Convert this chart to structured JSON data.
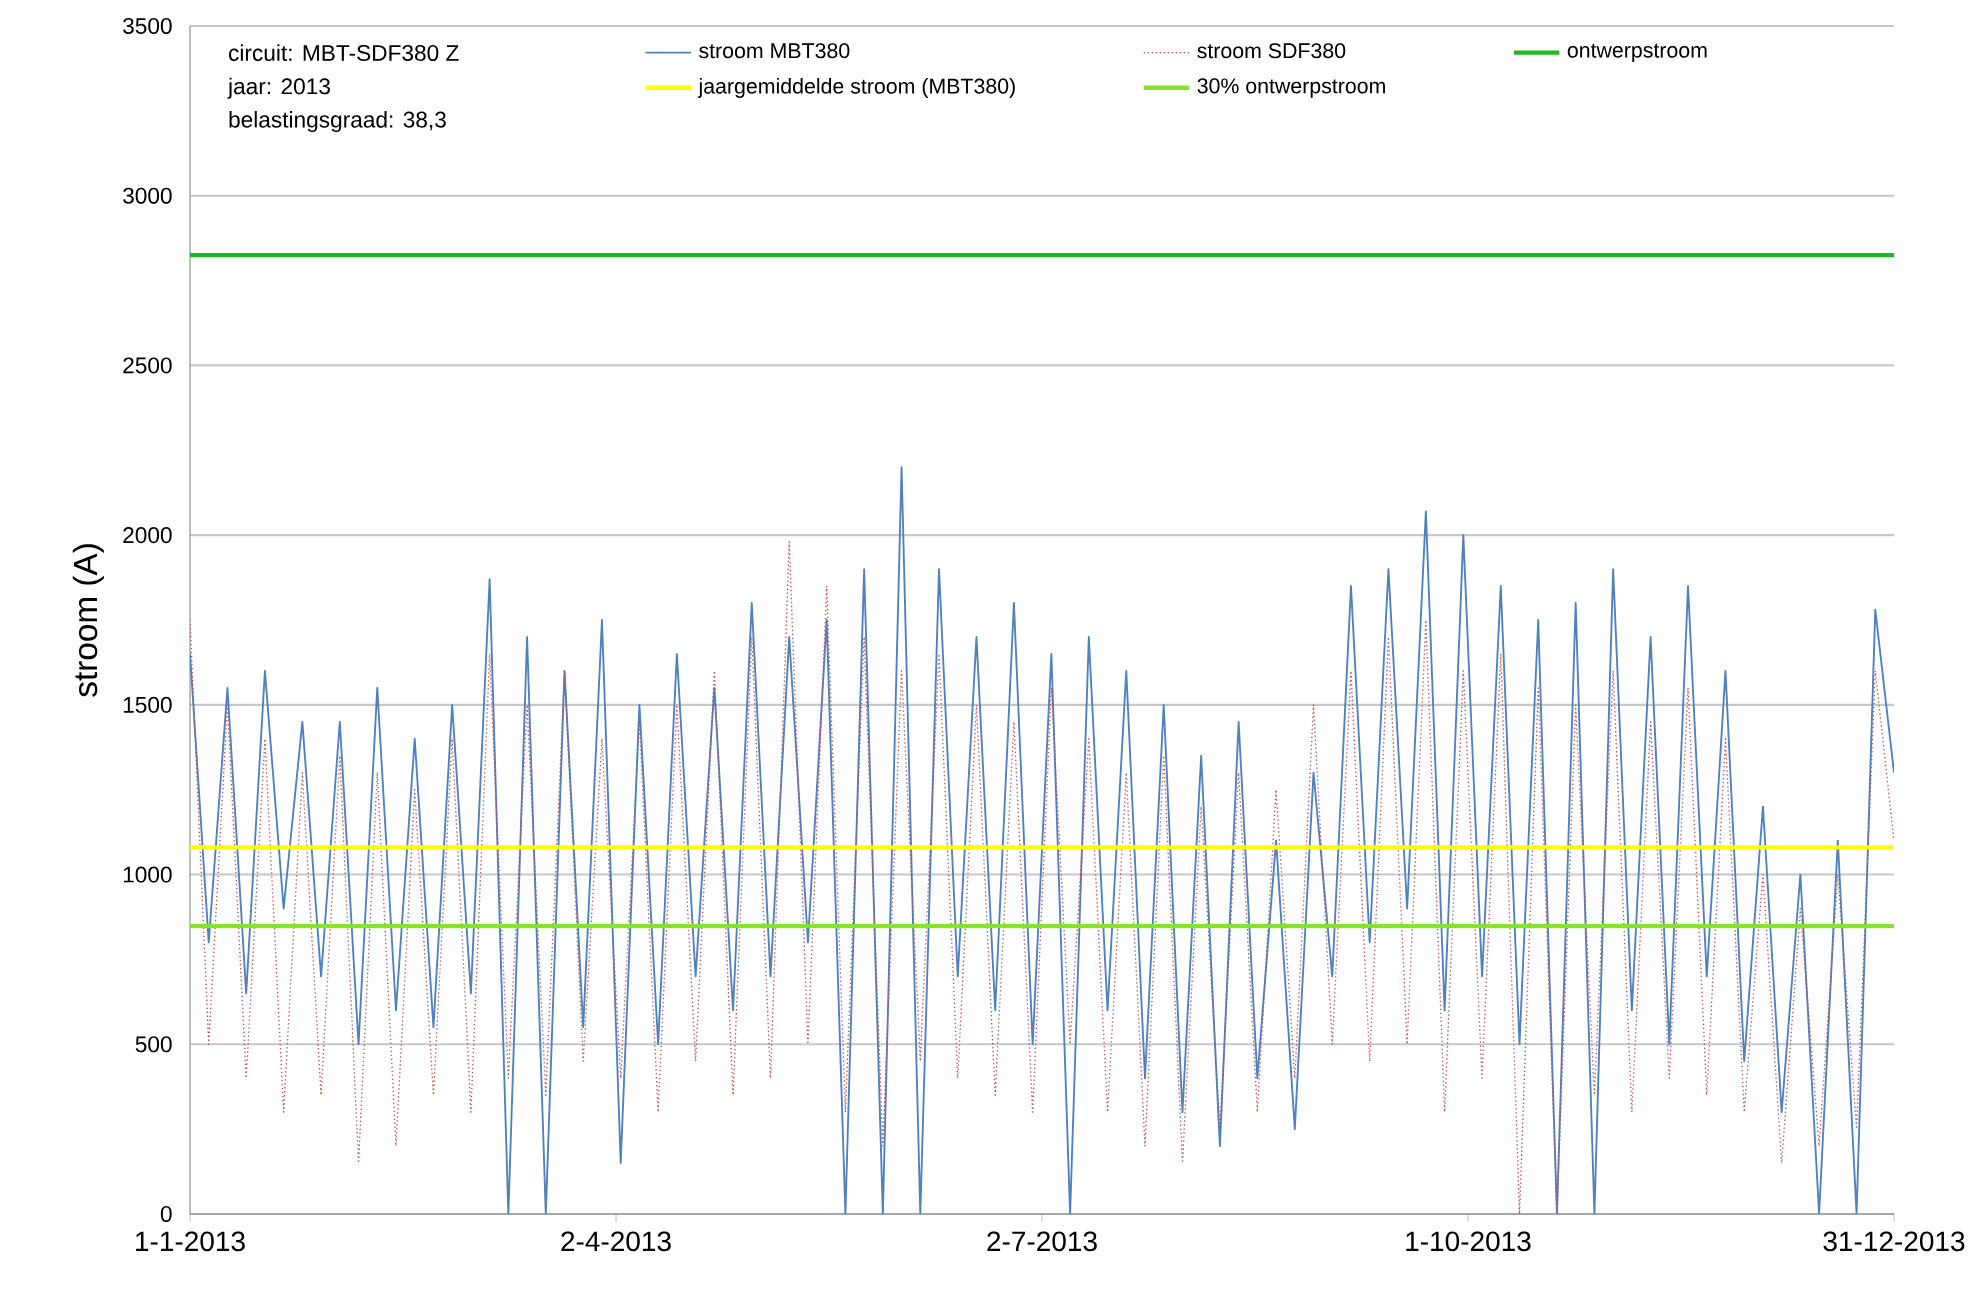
{
  "chart_data": {
    "type": "line",
    "ylabel": "stroom (A)",
    "annotations": [
      "circuit: MBT-SDF380 Z",
      "jaar: 2013",
      "belastingsgraad: 38,3"
    ],
    "x": [
      "2013-01-01",
      "2013-01-05",
      "2013-01-09",
      "2013-01-13",
      "2013-01-17",
      "2013-01-21",
      "2013-01-25",
      "2013-01-29",
      "2013-02-02",
      "2013-02-06",
      "2013-02-10",
      "2013-02-14",
      "2013-02-18",
      "2013-02-22",
      "2013-02-26",
      "2013-03-02",
      "2013-03-06",
      "2013-03-10",
      "2013-03-14",
      "2013-03-18",
      "2013-03-22",
      "2013-03-26",
      "2013-03-30",
      "2013-04-03",
      "2013-04-07",
      "2013-04-11",
      "2013-04-15",
      "2013-04-19",
      "2013-04-23",
      "2013-04-27",
      "2013-05-01",
      "2013-05-05",
      "2013-05-09",
      "2013-05-13",
      "2013-05-17",
      "2013-05-21",
      "2013-05-25",
      "2013-05-29",
      "2013-06-02",
      "2013-06-06",
      "2013-06-10",
      "2013-06-14",
      "2013-06-18",
      "2013-06-22",
      "2013-06-26",
      "2013-06-30",
      "2013-07-04",
      "2013-07-08",
      "2013-07-12",
      "2013-07-16",
      "2013-07-20",
      "2013-07-24",
      "2013-07-28",
      "2013-08-01",
      "2013-08-05",
      "2013-08-09",
      "2013-08-13",
      "2013-08-17",
      "2013-08-21",
      "2013-08-25",
      "2013-08-29",
      "2013-09-02",
      "2013-09-06",
      "2013-09-10",
      "2013-09-14",
      "2013-09-18",
      "2013-09-22",
      "2013-09-26",
      "2013-09-30",
      "2013-10-04",
      "2013-10-08",
      "2013-10-12",
      "2013-10-16",
      "2013-10-20",
      "2013-10-24",
      "2013-10-28",
      "2013-11-01",
      "2013-11-05",
      "2013-11-09",
      "2013-11-13",
      "2013-11-17",
      "2013-11-21",
      "2013-11-25",
      "2013-11-29",
      "2013-12-03",
      "2013-12-07",
      "2013-12-11",
      "2013-12-15",
      "2013-12-19",
      "2013-12-23",
      "2013-12-27",
      "2013-12-31"
    ],
    "series": [
      {
        "name": "stroom MBT380",
        "color": "#4f81bd",
        "line_style": "solid",
        "values": [
          1650,
          800,
          1550,
          650,
          1600,
          900,
          1450,
          700,
          1450,
          500,
          1550,
          600,
          1400,
          550,
          1500,
          650,
          1870,
          0,
          1700,
          0,
          1600,
          550,
          1750,
          150,
          1500,
          500,
          1650,
          700,
          1550,
          600,
          1800,
          700,
          1700,
          800,
          1750,
          0,
          1900,
          0,
          2200,
          0,
          1900,
          700,
          1700,
          600,
          1800,
          500,
          1650,
          0,
          1700,
          600,
          1600,
          400,
          1500,
          300,
          1350,
          200,
          1450,
          400,
          1100,
          250,
          1300,
          700,
          1850,
          800,
          1900,
          900,
          2070,
          600,
          2000,
          700,
          1850,
          500,
          1750,
          0,
          1800,
          0,
          1900,
          600,
          1700,
          500,
          1850,
          700,
          1600,
          450,
          1200,
          300,
          1000,
          0,
          1100,
          0,
          1780,
          1300
        ]
      },
      {
        "name": "stroom SDF380",
        "color": "#c0504d",
        "line_style": "dotted",
        "values": [
          1750,
          500,
          1500,
          400,
          1400,
          300,
          1300,
          350,
          1350,
          150,
          1300,
          200,
          1250,
          350,
          1400,
          300,
          1650,
          400,
          1500,
          350,
          1600,
          450,
          1400,
          400,
          1450,
          300,
          1500,
          450,
          1600,
          350,
          1700,
          400,
          1980,
          500,
          1850,
          300,
          1700,
          200,
          1600,
          450,
          1650,
          400,
          1500,
          350,
          1450,
          300,
          1550,
          500,
          1400,
          300,
          1300,
          200,
          1350,
          150,
          1200,
          250,
          1300,
          300,
          1250,
          400,
          1500,
          500,
          1600,
          450,
          1700,
          500,
          1750,
          300,
          1600,
          400,
          1650,
          0,
          1550,
          0,
          1500,
          350,
          1600,
          300,
          1450,
          400,
          1550,
          350,
          1400,
          300,
          1000,
          150,
          900,
          200,
          1000,
          250,
          1600,
          1100
        ]
      }
    ],
    "ref_lines": [
      {
        "axis": "y",
        "value": 2825,
        "label": "ontwerpstroom",
        "color": "#1fb81f"
      },
      {
        "axis": "y",
        "value": 1080,
        "label": "jaargemiddelde stroom (MBT380)",
        "color": "#ffff00"
      },
      {
        "axis": "y",
        "value": 848,
        "label": "30% ontwerpstroom",
        "color": "#86e32a"
      }
    ],
    "xlim": [
      "2013-01-01",
      "2013-12-31"
    ],
    "xticks": [
      {
        "value": "2013-01-01",
        "label": "1-1-2013"
      },
      {
        "value": "2013-04-02",
        "label": "2-4-2013"
      },
      {
        "value": "2013-07-02",
        "label": "2-7-2013"
      },
      {
        "value": "2013-10-01",
        "label": "1-10-2013"
      },
      {
        "value": "2013-12-31",
        "label": "31-12-2013"
      }
    ],
    "ylim": [
      0,
      3500
    ],
    "yticks": [
      0,
      500,
      1000,
      1500,
      2000,
      2500,
      3000,
      3500
    ],
    "grid": "y",
    "legend": "top"
  }
}
